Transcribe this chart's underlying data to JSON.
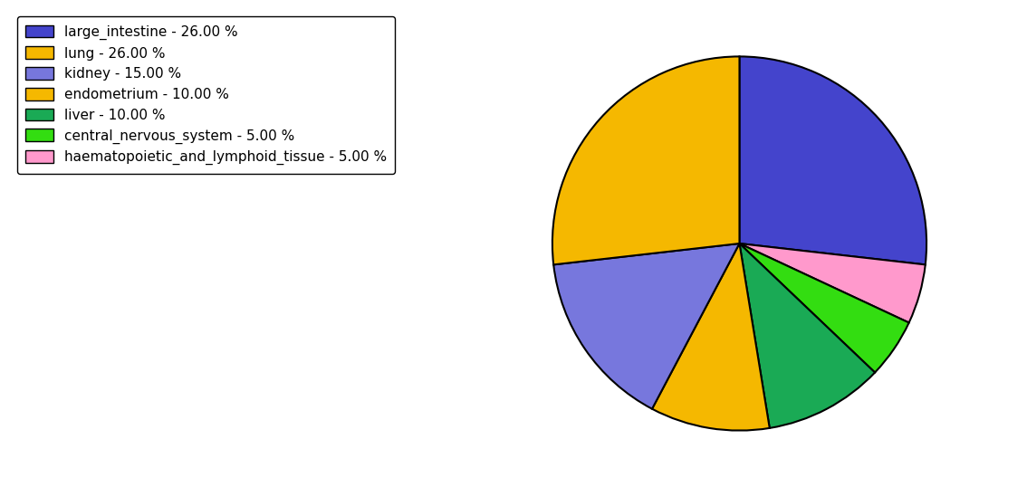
{
  "labels": [
    "large_intestine - 26.00 %",
    "lung - 26.00 %",
    "kidney - 15.00 %",
    "endometrium - 10.00 %",
    "liver - 10.00 %",
    "central_nervous_system - 5.00 %",
    "haematopoietic_and_lymphoid_tissue - 5.00 %"
  ],
  "sizes": [
    26,
    26,
    15,
    10,
    10,
    5,
    5
  ],
  "colors": [
    "#4444cc",
    "#f5b800",
    "#7777dd",
    "#f5b800",
    "#1aaa55",
    "#33dd11",
    "#ff99cc"
  ],
  "legend_labels": [
    "large_intestine - 26.00 %",
    "lung - 26.00 %",
    "kidney - 15.00 %",
    "endometrium - 10.00 %",
    "liver - 10.00 %",
    "central_nervous_system - 5.00 %",
    "haematopoietic_and_lymphoid_tissue - 5.00 %"
  ],
  "wedge_sizes_ordered": [
    26,
    5,
    5,
    10,
    10,
    15,
    26
  ],
  "wedge_colors_ordered": [
    "#4444cc",
    "#ff99cc",
    "#33dd11",
    "#1aaa55",
    "#f5b800",
    "#7777dd",
    "#f5b800"
  ],
  "startangle": 90,
  "figsize": [
    11.34,
    5.38
  ],
  "dpi": 100
}
